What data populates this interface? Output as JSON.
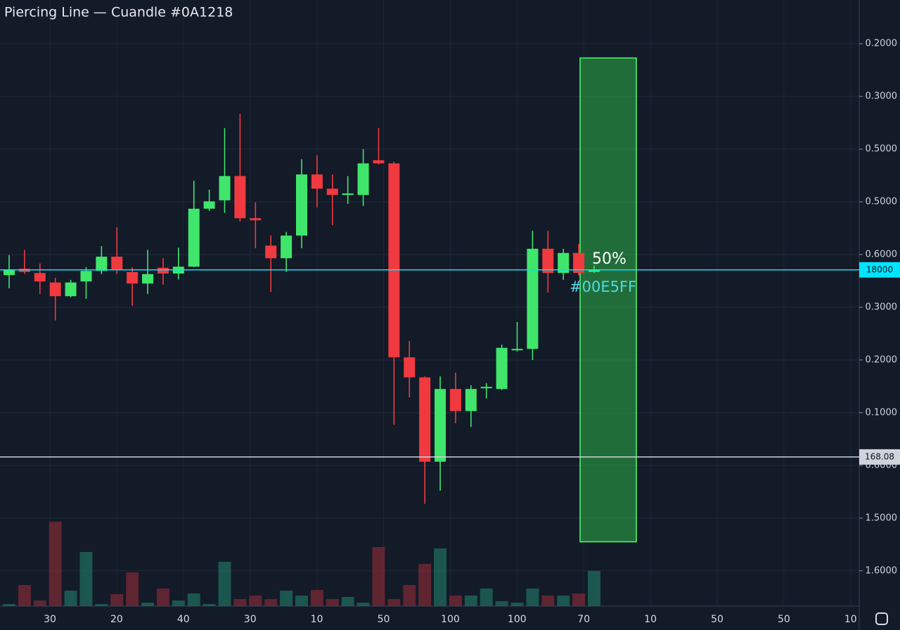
{
  "chart_data": {
    "type": "candlestick",
    "title": "Piercing Line — Cuandle #0A1218",
    "ylim": [
      -0.67,
      10.83
    ],
    "yticks": [
      {
        "value": 10,
        "label": "0.2000"
      },
      {
        "value": 9,
        "label": "0.3000"
      },
      {
        "value": 8,
        "label": "0.5000"
      },
      {
        "value": 7,
        "label": "0.5000"
      },
      {
        "value": 6,
        "label": "0.6000"
      },
      {
        "value": 5,
        "label": "0.3000"
      },
      {
        "value": 4,
        "label": "0.2000"
      },
      {
        "value": 3,
        "label": "0.1000"
      },
      {
        "value": 2,
        "label": "0.6000"
      },
      {
        "value": 1,
        "label": "1.5000"
      },
      {
        "value": 0,
        "label": "1.6000"
      }
    ],
    "x_labels": [
      "30",
      "20",
      "40",
      "30",
      "10",
      "50",
      "100",
      "100",
      "70",
      "10",
      "50",
      "50",
      "10"
    ],
    "up_color": "#3fe66b",
    "down_color": "#f03a3f",
    "grid": true,
    "open": [
      5.61,
      5.73,
      5.65,
      5.47,
      5.21,
      5.49,
      5.69,
      5.96,
      5.67,
      5.45,
      5.75,
      5.64,
      5.77,
      6.87,
      7.03,
      7.49,
      6.69,
      6.17,
      5.93,
      6.36,
      7.52,
      7.25,
      7.13,
      7.13,
      7.79,
      7.73,
      4.05,
      3.67,
      2.07,
      3.45,
      3.03,
      3.47,
      3.45,
      4.19,
      4.21,
      6.11,
      5.65,
      6.03,
      5.67
    ],
    "high": [
      5.99,
      6.09,
      5.83,
      5.56,
      5.52,
      5.76,
      6.16,
      6.52,
      5.76,
      6.09,
      5.93,
      6.13,
      7.4,
      7.23,
      8.4,
      8.67,
      6.99,
      6.36,
      6.43,
      7.81,
      7.89,
      7.52,
      7.49,
      8.0,
      8.4,
      7.76,
      4.36,
      3.69,
      3.69,
      3.76,
      3.52,
      3.56,
      4.29,
      4.72,
      6.45,
      6.45,
      6.11,
      6.2,
      5.79
    ],
    "low": [
      5.36,
      5.63,
      5.25,
      4.75,
      5.19,
      5.16,
      5.63,
      5.63,
      5.03,
      5.25,
      5.43,
      5.53,
      5.76,
      6.83,
      6.79,
      6.63,
      6.12,
      5.29,
      5.67,
      6.12,
      6.89,
      6.56,
      6.96,
      6.92,
      7.71,
      2.77,
      3.29,
      1.27,
      1.52,
      2.8,
      2.73,
      3.27,
      3.43,
      4.16,
      4.0,
      5.28,
      5.52,
      5.6,
      5.65
    ],
    "close": [
      5.72,
      5.67,
      5.49,
      5.21,
      5.47,
      5.69,
      5.96,
      5.72,
      5.45,
      5.63,
      5.64,
      5.77,
      6.87,
      7.01,
      7.49,
      6.69,
      6.65,
      5.93,
      6.36,
      7.52,
      7.25,
      7.13,
      7.16,
      7.73,
      7.73,
      4.05,
      3.67,
      2.07,
      3.45,
      3.03,
      3.45,
      3.49,
      4.23,
      4.21,
      6.11,
      5.65,
      6.03,
      5.65,
      5.72
    ],
    "volume": [
      3,
      30,
      8,
      120,
      22,
      77,
      3,
      17,
      48,
      5,
      25,
      8,
      18,
      3,
      63,
      10,
      15,
      10,
      22,
      15,
      23,
      10,
      13,
      5,
      84,
      10,
      30,
      60,
      82,
      15,
      15,
      25,
      7,
      5,
      25,
      15,
      15,
      18,
      50
    ],
    "price_lines": [
      {
        "value": 5.71,
        "label": "18000",
        "color": "#00E5FF"
      },
      {
        "value": 2.16,
        "label": "168.08",
        "color": "#cfd4dc"
      }
    ],
    "zone": {
      "top": 9.73,
      "bottom": 0.55,
      "label": "50%",
      "sublabel": "#00E5FF",
      "color": "#2fbf4a"
    }
  }
}
